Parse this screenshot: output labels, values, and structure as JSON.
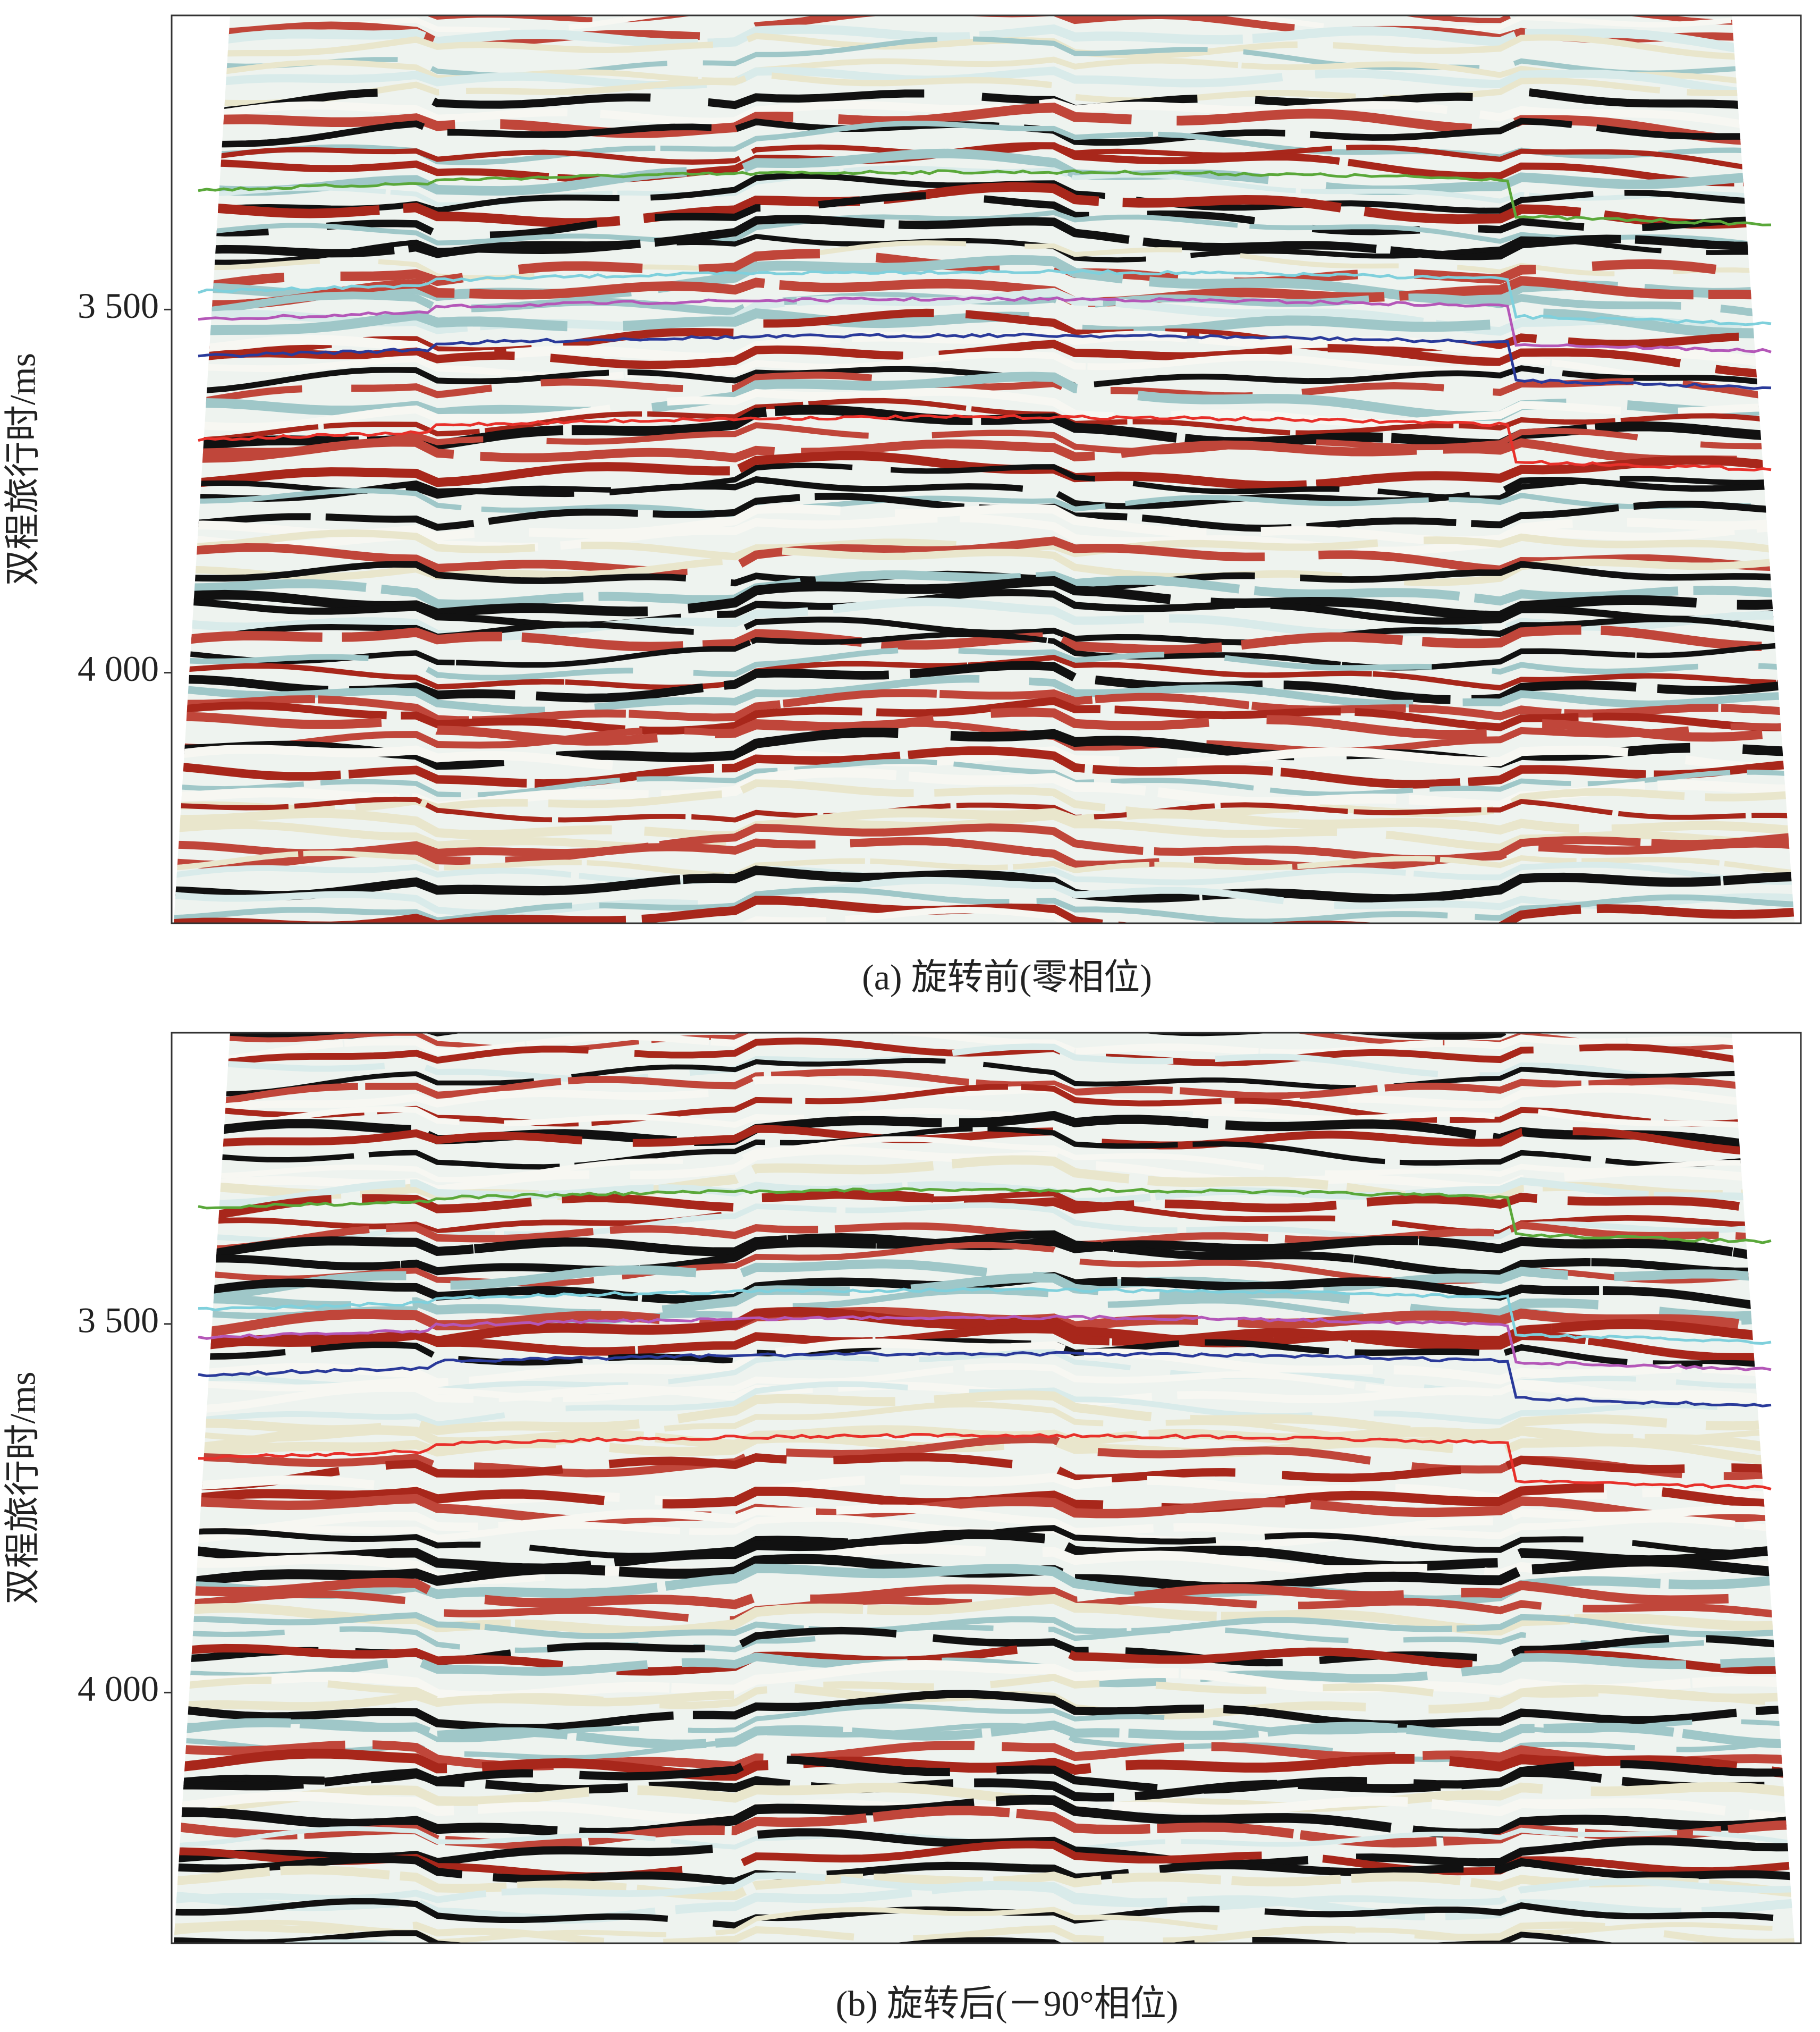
{
  "chart_data": [
    {
      "type": "seismic",
      "caption": "(a) 旋转前(零相位)",
      "y_label": "双程旅行时/ms",
      "ylim": [
        3095,
        4345
      ],
      "yticks": [
        {
          "value": 3500,
          "label": "3 500"
        },
        {
          "value": 4000,
          "label": "4 000"
        }
      ]
    },
    {
      "type": "seismic",
      "caption": "(b) 旋转后(－90°相位)",
      "y_label": "双程旅行时/ms",
      "ylim": [
        3105,
        4340
      ],
      "yticks": [
        {
          "value": 3500,
          "label": "3 500"
        },
        {
          "value": 4000,
          "label": "4 000"
        }
      ]
    }
  ]
}
